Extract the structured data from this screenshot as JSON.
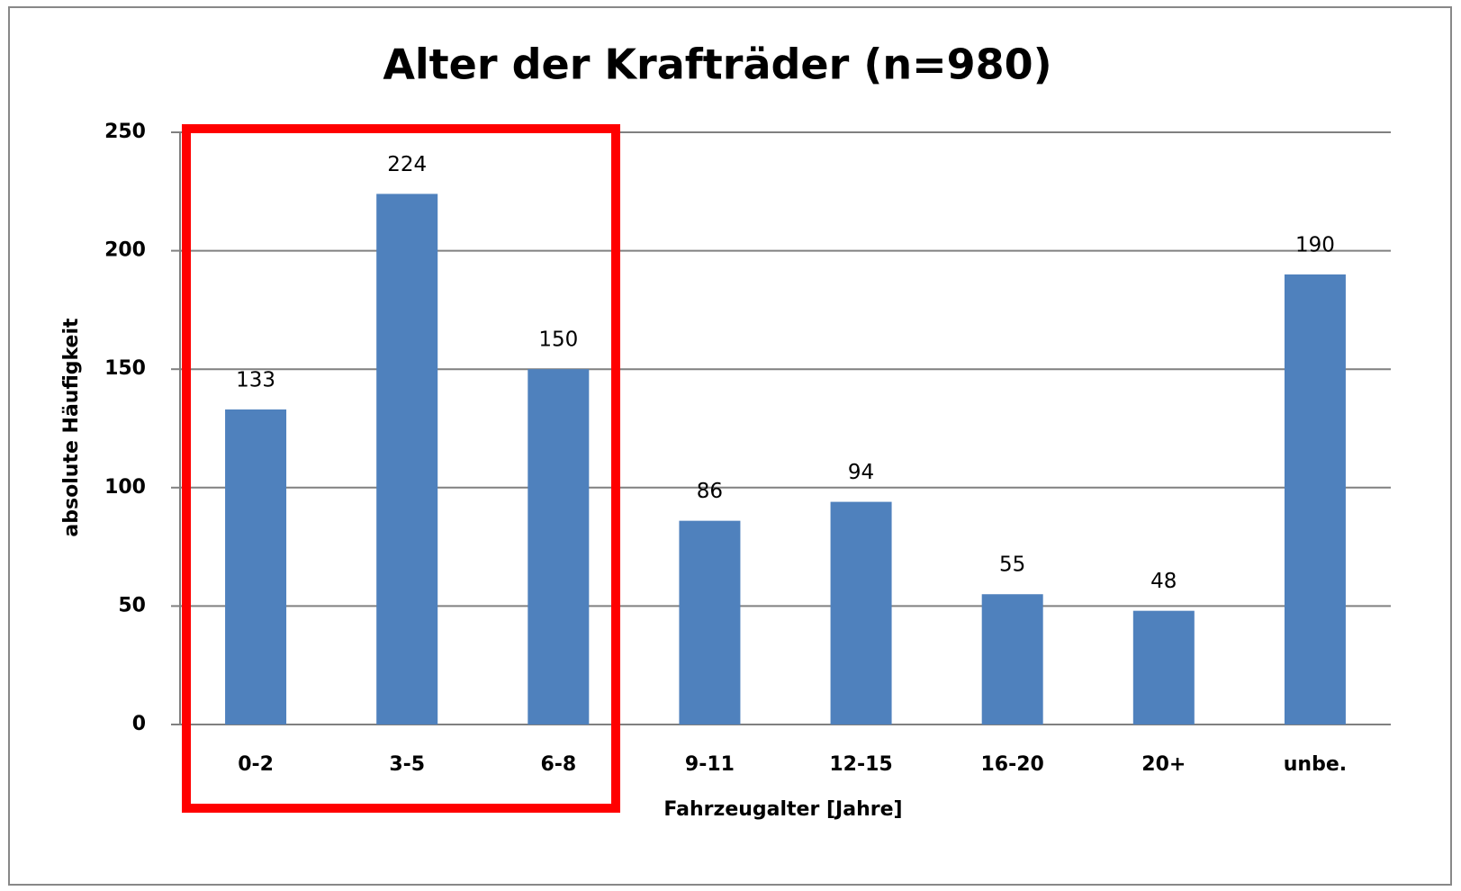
{
  "chart_data": {
    "type": "bar",
    "title": "Alter der Krafträder (n=980)",
    "x_label": "Fahrzeugalter [Jahre]",
    "y_label": "absolute Häufigkeit",
    "categories": [
      "0-2",
      "3-5",
      "6-8",
      "9-11",
      "12-15",
      "16-20",
      "20+",
      "unbe."
    ],
    "values": [
      133,
      224,
      150,
      86,
      94,
      55,
      48,
      190
    ],
    "color": "#4f81bd",
    "ylim": [
      0,
      250
    ],
    "yticks": [
      0,
      50,
      100,
      150,
      200,
      250
    ],
    "grid": true
  }
}
